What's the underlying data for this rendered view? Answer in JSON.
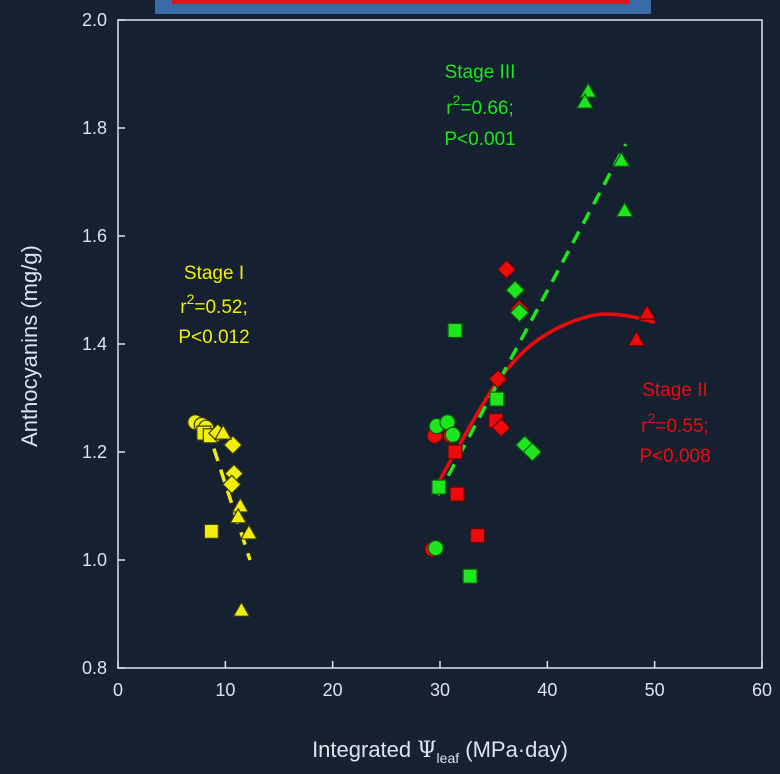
{
  "colors": {
    "background": "#152030",
    "axis": "#dde3ec",
    "stage1": "#f0ee0a",
    "stage2": "#ee0a0a",
    "stage3": "#1ee61e",
    "banner": "#3a6aa8",
    "banner_line": "#e0141e"
  },
  "chart_data": {
    "type": "scatter",
    "xlabel": {
      "main": "Integrated ",
      "symbol": "Ψ",
      "sub": "leaf",
      "unit": " (MPa·day)"
    },
    "ylabel": "Anthocyanins (mg/g)",
    "xlim": [
      0,
      60
    ],
    "ylim": [
      0.8,
      2.0
    ],
    "xticks": [
      "0",
      "10",
      "20",
      "30",
      "40",
      "50",
      "60"
    ],
    "yticks": [
      "0.8",
      "1.0",
      "1.2",
      "1.4",
      "1.6",
      "1.8",
      "2.0"
    ],
    "grid": false,
    "series": [
      {
        "color": "#f0ee0a",
        "points": [
          {
            "x": 7.2,
            "y": 1.255,
            "m": "circle"
          },
          {
            "x": 7.8,
            "y": 1.25,
            "m": "circle"
          },
          {
            "x": 8.2,
            "y": 1.245,
            "m": "circle"
          },
          {
            "x": 8.0,
            "y": 1.235,
            "m": "square"
          },
          {
            "x": 8.6,
            "y": 1.23,
            "m": "square"
          },
          {
            "x": 8.7,
            "y": 1.053,
            "m": "square"
          },
          {
            "x": 9.3,
            "y": 1.235,
            "m": "diamond"
          },
          {
            "x": 10.7,
            "y": 1.213,
            "m": "diamond"
          },
          {
            "x": 10.8,
            "y": 1.16,
            "m": "diamond"
          },
          {
            "x": 10.6,
            "y": 1.14,
            "m": "diamond"
          },
          {
            "x": 9.8,
            "y": 1.235,
            "m": "triangle"
          },
          {
            "x": 11.4,
            "y": 1.1,
            "m": "triangle"
          },
          {
            "x": 11.2,
            "y": 1.08,
            "m": "triangle"
          },
          {
            "x": 12.2,
            "y": 1.05,
            "m": "triangle"
          },
          {
            "x": 11.5,
            "y": 0.907,
            "m": "triangle"
          }
        ],
        "fit": {
          "style": "dashed",
          "points": [
            [
              8.3,
              1.245
            ],
            [
              12.3,
              1.0
            ]
          ]
        }
      },
      {
        "color": "#ee0a0a",
        "points": [
          {
            "x": 29.3,
            "y": 1.02,
            "m": "circle"
          },
          {
            "x": 29.5,
            "y": 1.23,
            "m": "circle"
          },
          {
            "x": 30.5,
            "y": 1.25,
            "m": "circle"
          },
          {
            "x": 31.0,
            "y": 1.23,
            "m": "circle"
          },
          {
            "x": 31.4,
            "y": 1.2,
            "m": "square"
          },
          {
            "x": 31.6,
            "y": 1.122,
            "m": "square"
          },
          {
            "x": 33.5,
            "y": 1.045,
            "m": "square"
          },
          {
            "x": 35.2,
            "y": 1.258,
            "m": "square"
          },
          {
            "x": 36.2,
            "y": 1.538,
            "m": "diamond"
          },
          {
            "x": 37.4,
            "y": 1.465,
            "m": "diamond"
          },
          {
            "x": 35.7,
            "y": 1.245,
            "m": "diamond"
          },
          {
            "x": 35.4,
            "y": 1.335,
            "m": "diamond"
          },
          {
            "x": 49.3,
            "y": 1.457,
            "m": "triangle"
          },
          {
            "x": 48.3,
            "y": 1.408,
            "m": "triangle"
          }
        ],
        "fit": {
          "style": "solid",
          "points": [
            [
              29.5,
              1.13
            ],
            [
              32.0,
              1.22
            ],
            [
              35.0,
              1.32
            ],
            [
              38.0,
              1.39
            ],
            [
              41.0,
              1.43
            ],
            [
              44.0,
              1.452
            ],
            [
              46.0,
              1.455
            ],
            [
              48.0,
              1.45
            ],
            [
              50.0,
              1.44
            ]
          ]
        }
      },
      {
        "color": "#1ee61e",
        "points": [
          {
            "x": 29.6,
            "y": 1.022,
            "m": "circle"
          },
          {
            "x": 29.7,
            "y": 1.248,
            "m": "circle"
          },
          {
            "x": 30.7,
            "y": 1.255,
            "m": "circle"
          },
          {
            "x": 31.2,
            "y": 1.232,
            "m": "circle"
          },
          {
            "x": 29.9,
            "y": 1.135,
            "m": "square"
          },
          {
            "x": 31.4,
            "y": 1.425,
            "m": "square"
          },
          {
            "x": 35.3,
            "y": 1.298,
            "m": "square"
          },
          {
            "x": 32.8,
            "y": 0.97,
            "m": "square"
          },
          {
            "x": 37.0,
            "y": 1.5,
            "m": "diamond"
          },
          {
            "x": 37.4,
            "y": 1.458,
            "m": "diamond"
          },
          {
            "x": 37.9,
            "y": 1.213,
            "m": "diamond"
          },
          {
            "x": 38.6,
            "y": 1.2,
            "m": "diamond"
          },
          {
            "x": 43.8,
            "y": 1.868,
            "m": "triangle"
          },
          {
            "x": 43.5,
            "y": 1.848,
            "m": "triangle"
          },
          {
            "x": 46.9,
            "y": 1.74,
            "m": "triangle"
          },
          {
            "x": 47.2,
            "y": 1.647,
            "m": "triangle"
          }
        ],
        "fit": {
          "style": "dashed",
          "points": [
            [
              29.8,
              1.12
            ],
            [
              47.3,
              1.77
            ]
          ]
        }
      }
    ],
    "annotations": [
      {
        "color": "#f0ee0a",
        "name": "Stage I",
        "r_prefix": "r",
        "r_sup": "2",
        "r_value": "=0.52;",
        "p": "P<0.012"
      },
      {
        "color": "#ee0a0a",
        "name": "Stage II",
        "r_prefix": "r",
        "r_sup": "2",
        "r_value": "=0.55;",
        "p": "P<0.008"
      },
      {
        "color": "#1ee61e",
        "name": "Stage III",
        "r_prefix": "r",
        "r_sup": "2",
        "r_value": "=0.66;",
        "p": "P<0.001"
      }
    ]
  }
}
